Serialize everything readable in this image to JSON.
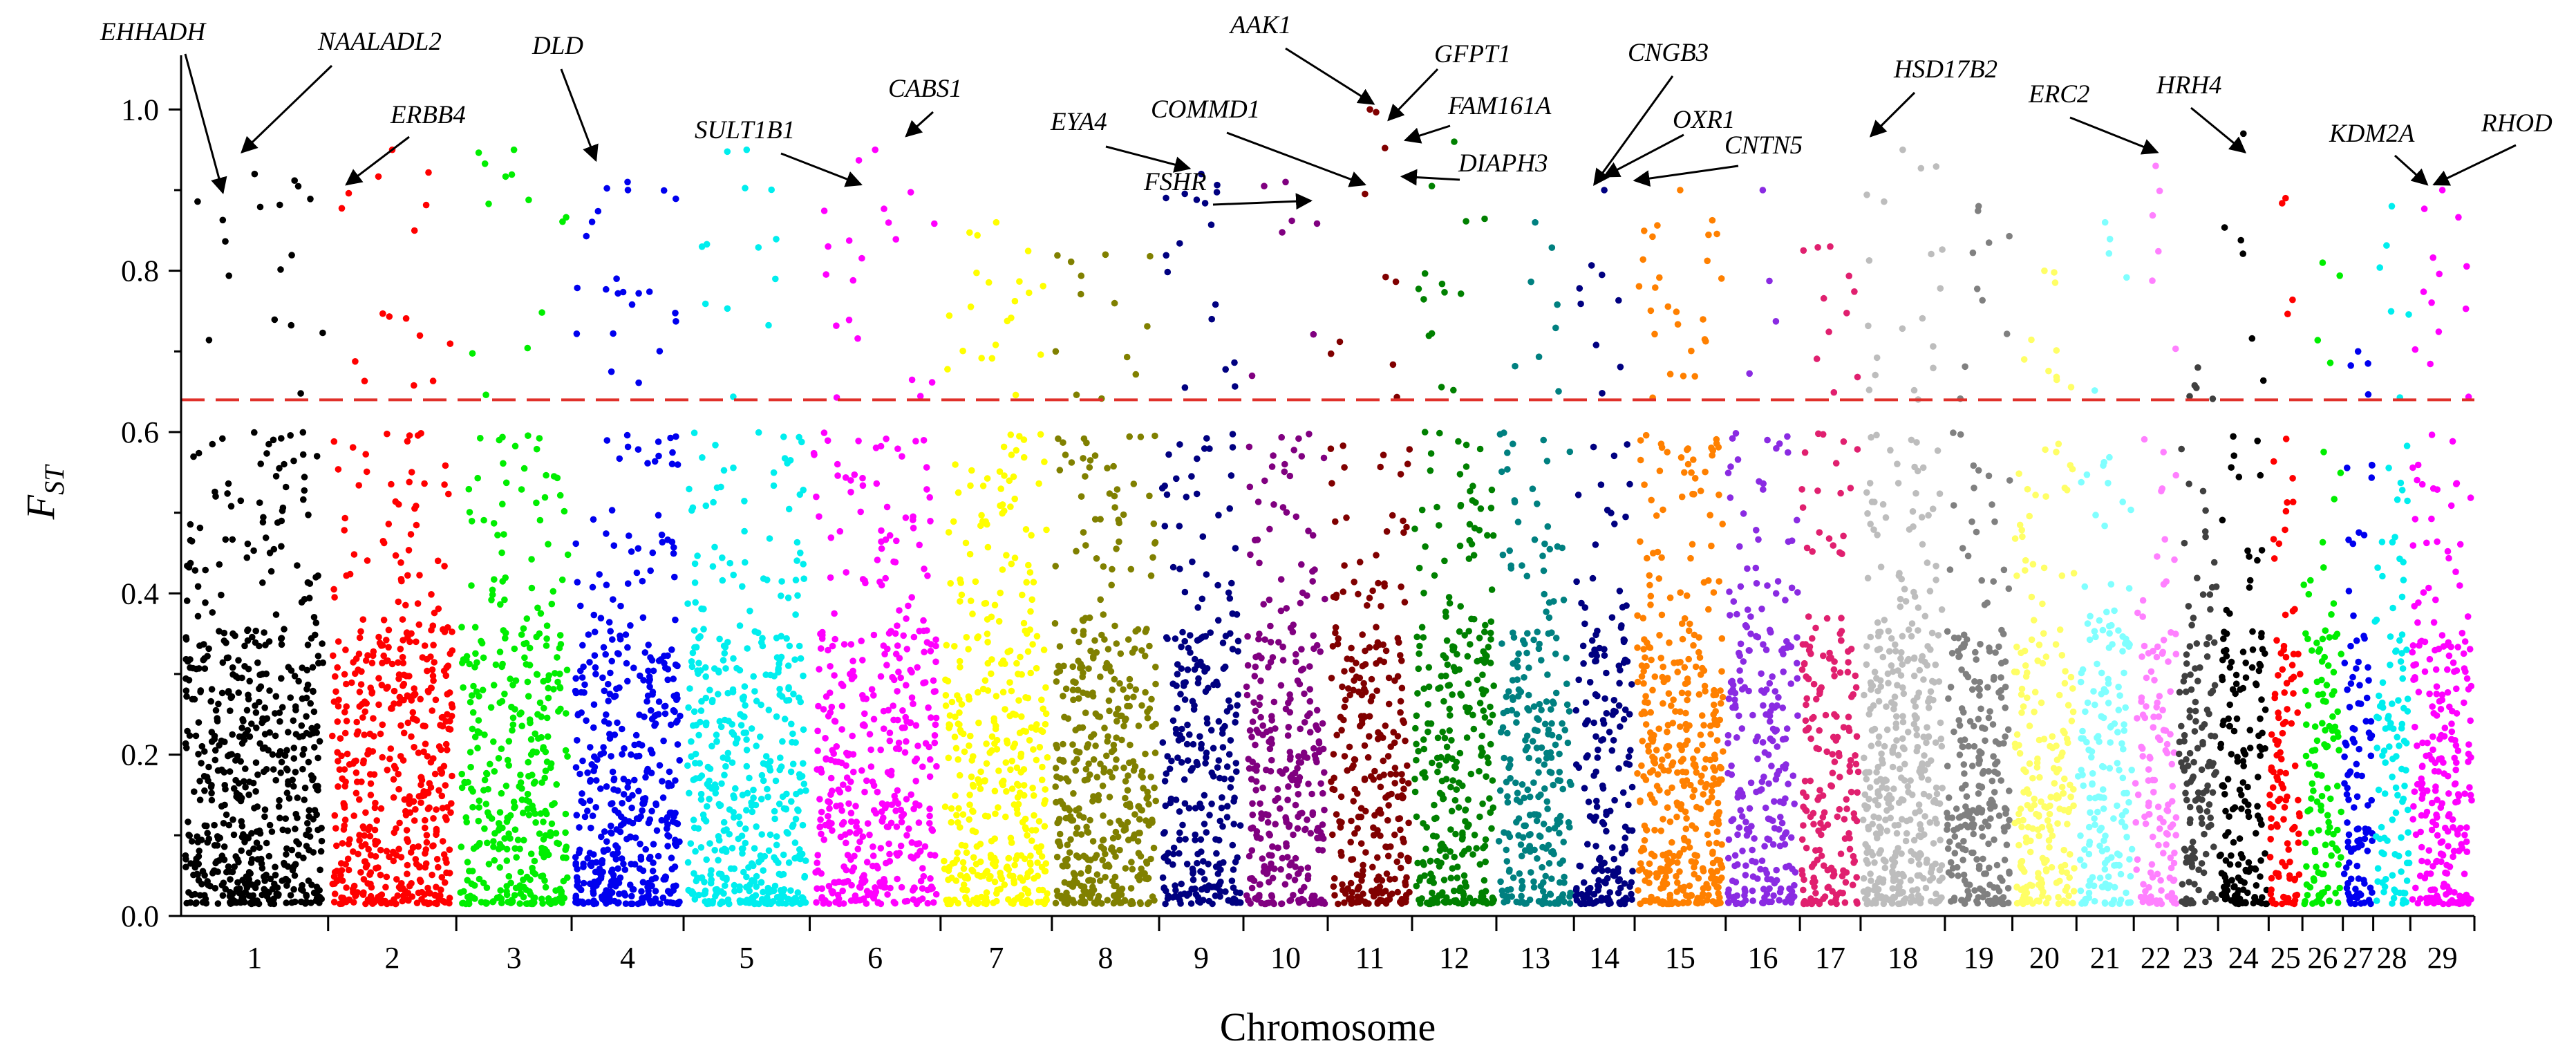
{
  "chart_data": {
    "type": "scatter",
    "title": "",
    "xlabel": "Chromosome",
    "ylabel": "F",
    "ylabel_sub": "ST",
    "ylim": [
      0.0,
      1.05
    ],
    "yticks": [
      "0.0",
      "0.2",
      "0.4",
      "0.6",
      "0.8",
      "1.0"
    ],
    "threshold": 0.64,
    "threshold_color": "#e0302a",
    "grid": false,
    "legend": "none",
    "chromosomes": [
      {
        "label": "1",
        "start": 0.0,
        "end": 2.18,
        "color": "#000000",
        "density": 1.2,
        "max": 0.92
      },
      {
        "label": "2",
        "start": 2.18,
        "end": 4.08,
        "color": "#ff0000",
        "density": 1.2,
        "max": 0.95
      },
      {
        "label": "3",
        "start": 4.08,
        "end": 5.79,
        "color": "#00ee00",
        "density": 1.0,
        "max": 0.95
      },
      {
        "label": "4",
        "start": 5.79,
        "end": 7.45,
        "color": "#0000ee",
        "density": 1.2,
        "max": 0.91
      },
      {
        "label": "5",
        "start": 7.45,
        "end": 9.32,
        "color": "#00eeee",
        "density": 1.1,
        "max": 0.95
      },
      {
        "label": "6",
        "start": 9.32,
        "end": 11.26,
        "color": "#ff00ff",
        "density": 1.0,
        "max": 0.95
      },
      {
        "label": "7",
        "start": 11.26,
        "end": 12.91,
        "color": "#ffff00",
        "density": 1.1,
        "max": 0.86
      },
      {
        "label": "8",
        "start": 12.91,
        "end": 14.5,
        "color": "#808000",
        "density": 1.2,
        "max": 0.82
      },
      {
        "label": "9",
        "start": 14.5,
        "end": 15.75,
        "color": "#000080",
        "density": 1.0,
        "max": 0.92
      },
      {
        "label": "10",
        "start": 15.75,
        "end": 17.0,
        "color": "#800080",
        "density": 1.1,
        "max": 0.91
      },
      {
        "label": "11",
        "start": 17.0,
        "end": 18.25,
        "color": "#800000",
        "density": 1.0,
        "max": 1.0
      },
      {
        "label": "12",
        "start": 18.25,
        "end": 19.5,
        "color": "#008000",
        "density": 1.1,
        "max": 0.96
      },
      {
        "label": "13",
        "start": 19.5,
        "end": 20.65,
        "color": "#008080",
        "density": 1.0,
        "max": 0.86
      },
      {
        "label": "14",
        "start": 20.65,
        "end": 21.55,
        "color": "#000080",
        "density": 1.0,
        "max": 0.9
      },
      {
        "label": "15",
        "start": 21.55,
        "end": 22.9,
        "color": "#ff8000",
        "density": 1.4,
        "max": 0.9
      },
      {
        "label": "16",
        "start": 22.9,
        "end": 24.0,
        "color": "#8a2be2",
        "density": 1.0,
        "max": 0.9
      },
      {
        "label": "17",
        "start": 24.0,
        "end": 24.9,
        "color": "#e0206f",
        "density": 1.0,
        "max": 0.83
      },
      {
        "label": "18",
        "start": 24.9,
        "end": 26.15,
        "color": "#bdbdbd",
        "density": 1.4,
        "max": 0.95
      },
      {
        "label": "19",
        "start": 26.15,
        "end": 27.15,
        "color": "#808080",
        "density": 1.1,
        "max": 0.88
      },
      {
        "label": "20",
        "start": 27.15,
        "end": 28.1,
        "color": "#ffff66",
        "density": 1.0,
        "max": 0.8
      },
      {
        "label": "21",
        "start": 28.1,
        "end": 28.95,
        "color": "#80ffff",
        "density": 0.9,
        "max": 0.86
      },
      {
        "label": "22",
        "start": 28.95,
        "end": 29.6,
        "color": "#ff80ff",
        "density": 0.9,
        "max": 0.93
      },
      {
        "label": "23",
        "start": 29.6,
        "end": 30.2,
        "color": "#404040",
        "density": 1.0,
        "max": 0.68
      },
      {
        "label": "24",
        "start": 30.2,
        "end": 30.95,
        "color": "#000000",
        "density": 1.0,
        "max": 0.97
      },
      {
        "label": "25",
        "start": 30.95,
        "end": 31.45,
        "color": "#ff0000",
        "density": 1.0,
        "max": 0.89
      },
      {
        "label": "26",
        "start": 31.45,
        "end": 32.05,
        "color": "#00ee00",
        "density": 0.9,
        "max": 0.81
      },
      {
        "label": "27",
        "start": 32.05,
        "end": 32.5,
        "color": "#0000ee",
        "density": 1.0,
        "max": 0.7
      },
      {
        "label": "28",
        "start": 32.5,
        "end": 33.05,
        "color": "#00eeee",
        "density": 0.9,
        "max": 0.88
      },
      {
        "label": "29",
        "start": 33.05,
        "end": 34.0,
        "color": "#ff00ff",
        "density": 1.2,
        "max": 0.9
      }
    ],
    "annotations": [
      {
        "gene": "EHHADH",
        "x": 0.62,
        "y": 0.89
      },
      {
        "gene": "NAALADL2",
        "x": 0.9,
        "y": 0.94
      },
      {
        "gene": "ERBB4",
        "x": 2.45,
        "y": 0.9
      },
      {
        "gene": "DLD",
        "x": 6.15,
        "y": 0.93
      },
      {
        "gene": "SULT1B1",
        "x": 10.08,
        "y": 0.9
      },
      {
        "gene": "CABS1",
        "x": 10.75,
        "y": 0.96
      },
      {
        "gene": "EYA4",
        "x": 14.95,
        "y": 0.92
      },
      {
        "gene": "FSHR",
        "x": 16.75,
        "y": 0.88
      },
      {
        "gene": "COMMD1",
        "x": 17.55,
        "y": 0.9
      },
      {
        "gene": "AAK1",
        "x": 17.68,
        "y": 1.0
      },
      {
        "gene": "GFPT1",
        "x": 17.9,
        "y": 0.98
      },
      {
        "gene": "FAM161A",
        "x": 18.15,
        "y": 0.955
      },
      {
        "gene": "DIAPH3",
        "x": 18.1,
        "y": 0.91
      },
      {
        "gene": "CNGB3",
        "x": 20.95,
        "y": 0.9
      },
      {
        "gene": "OXR1",
        "x": 21.1,
        "y": 0.91
      },
      {
        "gene": "CNTN5",
        "x": 21.55,
        "y": 0.905
      },
      {
        "gene": "HSD17B2",
        "x": 25.05,
        "y": 0.96
      },
      {
        "gene": "ERC2",
        "x": 29.3,
        "y": 0.94
      },
      {
        "gene": "HRH4",
        "x": 30.6,
        "y": 0.94
      },
      {
        "gene": "KDM2A",
        "x": 33.3,
        "y": 0.9
      },
      {
        "gene": "RHOD",
        "x": 33.4,
        "y": 0.9
      }
    ]
  }
}
